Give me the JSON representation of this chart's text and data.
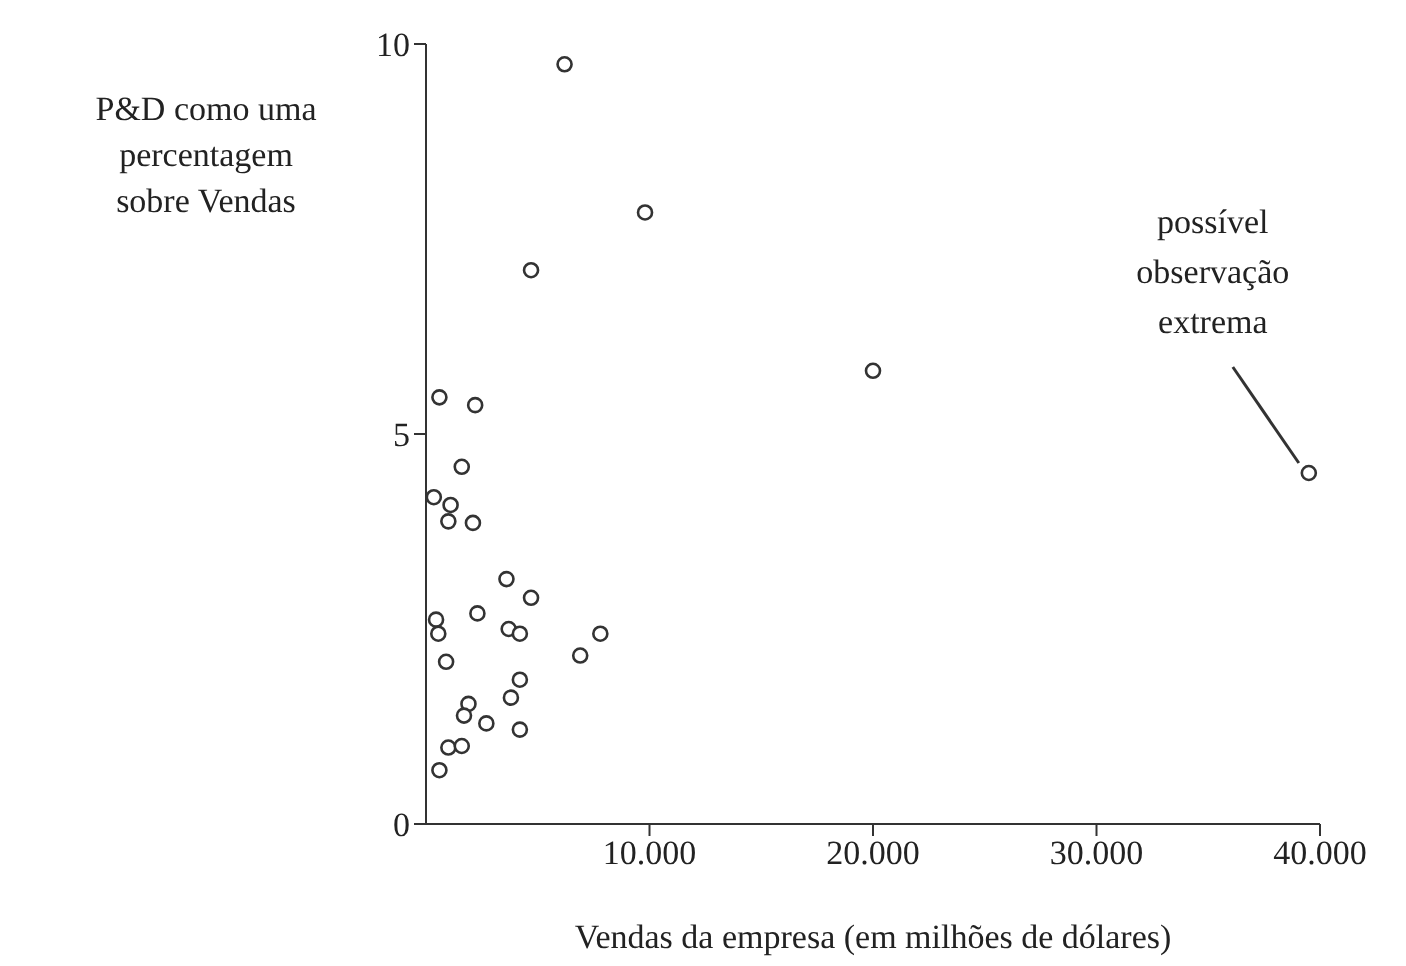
{
  "chart_data": {
    "type": "scatter",
    "xlabel": "Vendas da empresa (em milhões de dólares)",
    "ylabel": "P&D como uma percentagem sobre Vendas",
    "xlim": [
      0,
      40000
    ],
    "xticks": [
      {
        "value": 10000,
        "label": "10.000"
      },
      {
        "value": 20000,
        "label": "20.000"
      },
      {
        "value": 30000,
        "label": "30.000"
      },
      {
        "value": 40000,
        "label": "40.000"
      }
    ],
    "ylim": [
      0,
      10
    ],
    "yticks": [
      0,
      5,
      10
    ],
    "grid": false,
    "marker": "circle",
    "x": [
      6200,
      9800,
      4700,
      600,
      2200,
      1600,
      350,
      1100,
      1000,
      2100,
      3600,
      4700,
      2300,
      450,
      550,
      3700,
      4200,
      7800,
      6900,
      900,
      4200,
      3800,
      1900,
      1700,
      2700,
      4200,
      1000,
      1600,
      600,
      20000,
      39500
    ],
    "values": [
      9.74,
      7.84,
      7.1,
      5.47,
      5.37,
      4.58,
      4.19,
      4.09,
      3.88,
      3.86,
      3.14,
      2.9,
      2.7,
      2.62,
      2.44,
      2.5,
      2.44,
      2.44,
      2.16,
      2.08,
      1.85,
      1.62,
      1.54,
      1.39,
      1.29,
      1.21,
      0.98,
      1.0,
      0.69,
      5.81,
      4.5
    ],
    "color": "#333333",
    "annotations": [
      {
        "text": "possível observação extrema",
        "x": 39500,
        "y": 4.5
      }
    ]
  }
}
